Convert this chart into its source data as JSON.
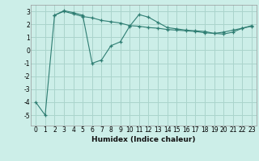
{
  "line1_x": [
    0,
    1,
    2,
    3,
    4,
    5,
    6,
    7,
    8,
    9,
    10,
    11,
    12,
    13,
    14,
    15,
    16,
    17,
    18,
    19,
    20,
    21,
    22,
    23
  ],
  "line1_y": [
    -4.0,
    -5.0,
    2.7,
    3.0,
    2.8,
    2.6,
    2.5,
    2.3,
    2.2,
    2.1,
    1.9,
    1.85,
    1.75,
    1.7,
    1.6,
    1.55,
    1.5,
    1.45,
    1.35,
    1.3,
    1.4,
    1.55,
    1.7,
    1.85
  ],
  "line2_x": [
    2,
    3,
    4,
    5,
    6,
    7,
    8,
    9,
    10,
    11,
    12,
    13,
    14,
    15,
    16,
    17,
    18,
    19,
    20,
    21,
    22,
    23
  ],
  "line2_y": [
    2.7,
    3.05,
    2.9,
    2.7,
    -1.0,
    -0.75,
    0.35,
    0.65,
    1.85,
    2.75,
    2.55,
    2.15,
    1.75,
    1.65,
    1.55,
    1.5,
    1.45,
    1.3,
    1.25,
    1.4,
    1.7,
    1.9
  ],
  "color": "#2e7d72",
  "bg_color": "#cceee8",
  "grid_color": "#aad4cc",
  "xlabel": "Humidex (Indice chaleur)",
  "ylim": [
    -5.8,
    3.5
  ],
  "xlim": [
    -0.5,
    23.5
  ],
  "yticks": [
    -5,
    -4,
    -3,
    -2,
    -1,
    0,
    1,
    2,
    3
  ],
  "xticks": [
    0,
    1,
    2,
    3,
    4,
    5,
    6,
    7,
    8,
    9,
    10,
    11,
    12,
    13,
    14,
    15,
    16,
    17,
    18,
    19,
    20,
    21,
    22,
    23
  ],
  "tick_fontsize": 5.5,
  "xlabel_fontsize": 6.5
}
